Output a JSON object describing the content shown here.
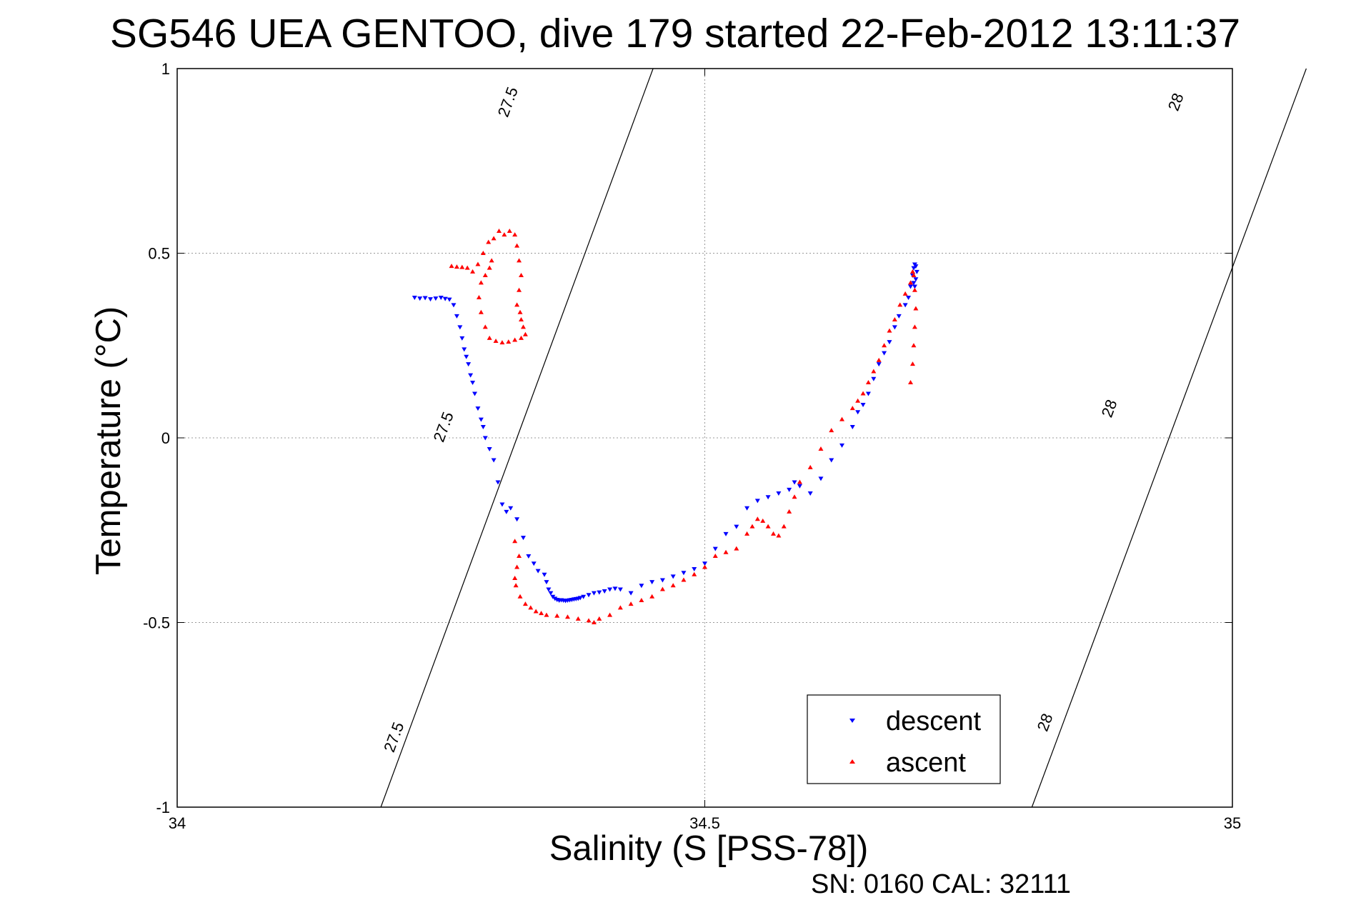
{
  "chart_data": {
    "type": "scatter",
    "title": "SG546 UEA GENTOO, dive 179 started 22-Feb-2012 13:11:37",
    "xlabel": "Salinity (S [PSS-78])",
    "ylabel": "Temperature (°C)",
    "xlim": [
      34,
      35
    ],
    "ylim": [
      -1,
      1
    ],
    "x_ticks": [
      34,
      34.5,
      35
    ],
    "x_tick_labels": [
      "34",
      "34.5",
      "35"
    ],
    "y_ticks": [
      -1,
      -0.5,
      0,
      0.5,
      1
    ],
    "y_tick_labels": [
      "-1",
      "-0.5",
      "0",
      "0.5",
      "1"
    ],
    "grid": true,
    "legend_position": "bottom-right",
    "footer_text": "SN: 0160  CAL: 32111",
    "density_contours": [
      {
        "label": "27.5",
        "points": [
          [
            34.193,
            -1
          ],
          [
            34.322,
            0
          ],
          [
            34.451,
            1
          ]
        ],
        "label_positions": [
          [
            34.205,
            -0.81
          ],
          [
            34.252,
            0.03
          ],
          [
            34.313,
            0.91
          ]
        ]
      },
      {
        "label": "28",
        "points": [
          [
            34.81,
            -1
          ],
          [
            34.94,
            0
          ],
          [
            35.07,
            1
          ]
        ],
        "label_positions": [
          [
            34.822,
            -0.77
          ],
          [
            34.883,
            0.08
          ],
          [
            34.946,
            0.91
          ]
        ]
      }
    ],
    "series": [
      {
        "name": "descent",
        "color": "#0000ff",
        "marker": "triangle-down",
        "x": [
          34.225,
          34.23,
          34.235,
          34.24,
          34.245,
          34.25,
          34.254,
          34.258,
          34.262,
          34.265,
          34.268,
          34.27,
          34.272,
          34.274,
          34.276,
          34.278,
          34.28,
          34.282,
          34.285,
          34.288,
          34.29,
          34.292,
          34.296,
          34.3,
          34.304,
          34.308,
          34.312,
          34.316,
          34.322,
          34.328,
          34.333,
          34.338,
          34.342,
          34.348,
          34.35,
          34.352,
          34.354,
          34.356,
          34.358,
          34.36,
          34.362,
          34.364,
          34.366,
          34.368,
          34.37,
          34.372,
          34.374,
          34.376,
          34.378,
          34.38,
          34.382,
          34.385,
          34.39,
          34.395,
          34.4,
          34.405,
          34.41,
          34.415,
          34.42,
          34.43,
          34.44,
          34.45,
          34.46,
          34.47,
          34.48,
          34.49,
          34.5,
          34.51,
          34.52,
          34.53,
          34.54,
          34.55,
          34.56,
          34.57,
          34.58,
          34.585,
          34.59,
          34.6,
          34.61,
          34.62,
          34.63,
          34.64,
          34.645,
          34.65,
          34.655,
          34.66,
          34.665,
          34.67,
          34.675,
          34.68,
          34.684,
          34.69,
          34.693,
          34.695,
          34.697,
          34.698,
          34.699,
          34.7,
          34.701,
          34.7,
          34.699,
          34.698
        ],
        "y": [
          0.38,
          0.378,
          0.379,
          0.376,
          0.378,
          0.38,
          0.377,
          0.375,
          0.36,
          0.33,
          0.3,
          0.27,
          0.24,
          0.22,
          0.2,
          0.17,
          0.15,
          0.12,
          0.08,
          0.05,
          0.03,
          0.0,
          -0.03,
          -0.06,
          -0.12,
          -0.18,
          -0.2,
          -0.19,
          -0.22,
          -0.27,
          -0.32,
          -0.34,
          -0.36,
          -0.37,
          -0.39,
          -0.41,
          -0.42,
          -0.43,
          -0.435,
          -0.438,
          -0.44,
          -0.439,
          -0.44,
          -0.441,
          -0.44,
          -0.439,
          -0.438,
          -0.437,
          -0.436,
          -0.435,
          -0.433,
          -0.43,
          -0.425,
          -0.42,
          -0.418,
          -0.415,
          -0.41,
          -0.408,
          -0.41,
          -0.42,
          -0.4,
          -0.39,
          -0.385,
          -0.375,
          -0.365,
          -0.355,
          -0.34,
          -0.3,
          -0.26,
          -0.24,
          -0.19,
          -0.17,
          -0.16,
          -0.15,
          -0.14,
          -0.12,
          -0.13,
          -0.15,
          -0.11,
          -0.06,
          -0.02,
          0.03,
          0.07,
          0.09,
          0.12,
          0.16,
          0.2,
          0.23,
          0.26,
          0.3,
          0.33,
          0.36,
          0.38,
          0.41,
          0.44,
          0.46,
          0.47,
          0.465,
          0.45,
          0.43,
          0.41,
          0.42
        ]
      },
      {
        "name": "ascent",
        "color": "#ff0000",
        "marker": "triangle-up",
        "x": [
          34.26,
          34.265,
          34.27,
          34.275,
          34.28,
          34.285,
          34.29,
          34.295,
          34.3,
          34.305,
          34.31,
          34.315,
          34.32,
          34.322,
          34.324,
          34.326,
          34.324,
          34.322,
          34.325,
          34.326,
          34.328,
          34.33,
          34.326,
          34.32,
          34.314,
          34.308,
          34.302,
          34.296,
          34.292,
          34.288,
          34.286,
          34.288,
          34.292,
          34.296,
          34.298,
          34.32,
          34.324,
          34.322,
          34.32,
          34.321,
          34.325,
          34.33,
          34.335,
          34.34,
          34.345,
          34.35,
          34.36,
          34.37,
          34.38,
          34.39,
          34.395,
          34.4,
          34.41,
          34.42,
          34.43,
          34.44,
          34.45,
          34.46,
          34.47,
          34.48,
          34.49,
          34.5,
          34.51,
          34.52,
          34.53,
          34.54,
          34.545,
          34.55,
          34.555,
          34.56,
          34.565,
          34.57,
          34.575,
          34.58,
          34.585,
          34.59,
          34.6,
          34.61,
          34.62,
          34.63,
          34.64,
          34.645,
          34.65,
          34.655,
          34.66,
          34.665,
          34.67,
          34.675,
          34.68,
          34.685,
          34.69,
          34.695,
          34.697,
          34.698,
          34.699,
          34.7,
          34.699,
          34.698,
          34.697,
          34.695
        ],
        "y": [
          0.465,
          0.463,
          0.462,
          0.46,
          0.45,
          0.47,
          0.5,
          0.53,
          0.54,
          0.56,
          0.55,
          0.56,
          0.55,
          0.52,
          0.48,
          0.44,
          0.4,
          0.36,
          0.34,
          0.32,
          0.3,
          0.28,
          0.27,
          0.265,
          0.26,
          0.258,
          0.262,
          0.27,
          0.3,
          0.34,
          0.38,
          0.42,
          0.44,
          0.46,
          0.48,
          -0.28,
          -0.32,
          -0.35,
          -0.38,
          -0.4,
          -0.43,
          -0.45,
          -0.46,
          -0.47,
          -0.475,
          -0.48,
          -0.482,
          -0.485,
          -0.49,
          -0.495,
          -0.5,
          -0.49,
          -0.48,
          -0.46,
          -0.45,
          -0.44,
          -0.43,
          -0.41,
          -0.4,
          -0.385,
          -0.37,
          -0.35,
          -0.32,
          -0.31,
          -0.3,
          -0.26,
          -0.24,
          -0.22,
          -0.225,
          -0.24,
          -0.26,
          -0.265,
          -0.24,
          -0.2,
          -0.16,
          -0.12,
          -0.08,
          -0.03,
          0.02,
          0.05,
          0.08,
          0.1,
          0.12,
          0.15,
          0.18,
          0.21,
          0.25,
          0.29,
          0.32,
          0.36,
          0.39,
          0.42,
          0.45,
          0.44,
          0.4,
          0.35,
          0.3,
          0.25,
          0.2,
          0.15
        ]
      }
    ]
  }
}
